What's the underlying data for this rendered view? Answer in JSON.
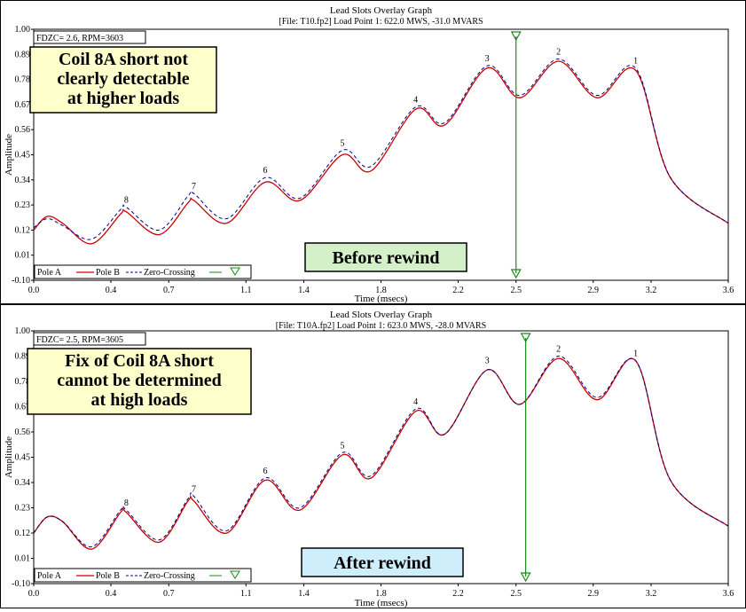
{
  "colors": {
    "pole_a": "#000000",
    "pole_b": "#cc0000",
    "zero_crossing": "#00008b",
    "marker": "#1a8a1a",
    "note_bg": "#ffffcc",
    "before_bg": "#d4f0c8",
    "after_bg": "#cfeefc"
  },
  "chart_data": [
    {
      "type": "line",
      "title": "Lead Slots Overlay Graph",
      "subtitle": "[File: T10.fp2]  Load Point 1: 622.0 MWS, -31.0 MVARS",
      "xlabel": "Time (msecs)",
      "ylabel": "Amplitude",
      "xlim": [
        0.0,
        3.6
      ],
      "ylim": [
        -0.1,
        1.0
      ],
      "xticks": [
        "0.0",
        "0.4",
        "0.7",
        "1.1",
        "1.4",
        "1.8",
        "2.2",
        "2.5",
        "2.9",
        "3.2",
        "3.6"
      ],
      "yticks": [
        "1.00",
        "0.89",
        "0.78",
        "0.67",
        "0.56",
        "0.45",
        "0.34",
        "0.23",
        "0.12",
        "0.01",
        "-0.10"
      ],
      "info_box": "FDZC= 2.6, RPM=3603",
      "note": [
        "Coil 8A short not",
        "clearly detectable",
        "at higher loads"
      ],
      "status_label": "Before rewind",
      "legend": [
        "Pole A",
        "Pole B",
        "Zero-Crossing"
      ],
      "zero_crossing_x": 2.5,
      "x": [
        0.0,
        0.07,
        0.15,
        0.3,
        0.45,
        0.48,
        0.65,
        0.8,
        0.83,
        1.0,
        1.2,
        1.38,
        1.6,
        1.75,
        1.98,
        2.13,
        2.35,
        2.52,
        2.72,
        2.92,
        3.12,
        3.3,
        3.6
      ],
      "series": [
        {
          "name": "Pole B",
          "values": [
            0.12,
            0.18,
            0.15,
            0.06,
            0.19,
            0.2,
            0.1,
            0.24,
            0.25,
            0.15,
            0.33,
            0.25,
            0.45,
            0.38,
            0.65,
            0.58,
            0.83,
            0.7,
            0.86,
            0.7,
            0.82,
            0.35,
            0.15
          ]
        },
        {
          "name": "Zero-Crossing",
          "values": [
            0.13,
            0.17,
            0.14,
            0.08,
            0.21,
            0.22,
            0.12,
            0.27,
            0.28,
            0.17,
            0.35,
            0.26,
            0.47,
            0.4,
            0.66,
            0.59,
            0.84,
            0.71,
            0.87,
            0.71,
            0.83,
            0.35,
            0.15
          ]
        }
      ],
      "point_labels": [
        {
          "text": "8",
          "x": 0.48,
          "y": 0.22
        },
        {
          "text": "7",
          "x": 0.83,
          "y": 0.28
        },
        {
          "text": "6",
          "x": 1.2,
          "y": 0.35
        },
        {
          "text": "5",
          "x": 1.6,
          "y": 0.47
        },
        {
          "text": "4",
          "x": 1.98,
          "y": 0.66
        },
        {
          "text": "3",
          "x": 2.35,
          "y": 0.84
        },
        {
          "text": "2",
          "x": 2.72,
          "y": 0.87
        },
        {
          "text": "1",
          "x": 3.12,
          "y": 0.83
        }
      ]
    },
    {
      "type": "line",
      "title": "Lead Slots Overlay Graph",
      "subtitle": "[File: T10A.fp2]  Load Point 1: 623.0 MWS, -28.0 MVARS",
      "xlabel": "Time (msecs)",
      "ylabel": "Amplitude",
      "xlim": [
        0.0,
        3.6
      ],
      "ylim": [
        -0.1,
        1.0
      ],
      "xticks": [
        "0.0",
        "0.4",
        "0.7",
        "1.1",
        "1.4",
        "1.8",
        "2.2",
        "2.5",
        "2.9",
        "3.2",
        "3.6"
      ],
      "yticks": [
        "1.00",
        "0.89",
        "0.78",
        "0.67",
        "0.56",
        "0.45",
        "0.34",
        "0.23",
        "0.12",
        "0.01",
        "-0.10"
      ],
      "info_box": "FDZC= 2.5, RPM=3605",
      "note": [
        "Fix of Coil 8A short",
        "cannot be determined",
        "at high loads"
      ],
      "status_label": "After rewind",
      "legend": [
        "Pole A",
        "Pole B",
        "Zero-Crossing"
      ],
      "zero_crossing_x": 2.55,
      "x": [
        0.0,
        0.07,
        0.15,
        0.3,
        0.45,
        0.48,
        0.65,
        0.8,
        0.83,
        1.0,
        1.2,
        1.38,
        1.6,
        1.75,
        1.98,
        2.13,
        2.35,
        2.52,
        2.72,
        2.92,
        3.12,
        3.3,
        3.6
      ],
      "series": [
        {
          "name": "Pole B",
          "values": [
            0.12,
            0.19,
            0.17,
            0.05,
            0.21,
            0.21,
            0.08,
            0.26,
            0.26,
            0.12,
            0.35,
            0.22,
            0.46,
            0.36,
            0.65,
            0.55,
            0.83,
            0.68,
            0.88,
            0.7,
            0.87,
            0.35,
            0.15
          ]
        },
        {
          "name": "Zero-Crossing",
          "values": [
            0.12,
            0.19,
            0.17,
            0.06,
            0.22,
            0.22,
            0.09,
            0.27,
            0.28,
            0.13,
            0.36,
            0.23,
            0.47,
            0.37,
            0.66,
            0.55,
            0.83,
            0.68,
            0.89,
            0.71,
            0.87,
            0.35,
            0.15
          ]
        }
      ],
      "point_labels": [
        {
          "text": "8",
          "x": 0.48,
          "y": 0.22
        },
        {
          "text": "7",
          "x": 0.83,
          "y": 0.28
        },
        {
          "text": "6",
          "x": 1.2,
          "y": 0.36
        },
        {
          "text": "5",
          "x": 1.6,
          "y": 0.47
        },
        {
          "text": "4",
          "x": 1.98,
          "y": 0.66
        },
        {
          "text": "3",
          "x": 2.35,
          "y": 0.84
        },
        {
          "text": "2",
          "x": 2.72,
          "y": 0.89
        },
        {
          "text": "1",
          "x": 3.12,
          "y": 0.87
        }
      ]
    }
  ]
}
